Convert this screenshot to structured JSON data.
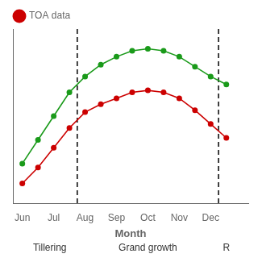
{
  "chart_data": {
    "type": "line",
    "xlabel": "Month",
    "x": [
      0,
      0.5,
      1,
      1.5,
      2,
      2.5,
      3,
      3.5,
      4,
      4.5,
      5,
      5.5,
      6,
      6.5
    ],
    "series": [
      {
        "color": "#1a9a1a",
        "marker": "circle",
        "values": [
          0.2,
          0.32,
          0.44,
          0.56,
          0.64,
          0.7,
          0.74,
          0.77,
          0.78,
          0.77,
          0.74,
          0.69,
          0.64,
          0.6
        ]
      },
      {
        "name": "TOA data",
        "color": "#cc0000",
        "marker": "circle",
        "values": [
          0.1,
          0.18,
          0.28,
          0.38,
          0.46,
          0.5,
          0.53,
          0.56,
          0.57,
          0.56,
          0.53,
          0.47,
          0.4,
          0.33
        ]
      }
    ],
    "xlim": [
      -0.3,
      7.2
    ],
    "ylim": [
      0.0,
      0.88
    ],
    "xticks": [
      {
        "value": 0,
        "label": "Jun"
      },
      {
        "value": 1,
        "label": "Jul"
      },
      {
        "value": 2,
        "label": "Aug"
      },
      {
        "value": 3,
        "label": "Sep"
      },
      {
        "value": 4,
        "label": "Oct"
      },
      {
        "value": 5,
        "label": "Nov"
      },
      {
        "value": 6,
        "label": "Dec"
      }
    ],
    "vlines": [
      {
        "x": 1.75,
        "color": "#000000",
        "line_style": "dashed"
      },
      {
        "x": 6.25,
        "color": "#000000",
        "line_style": "dashed"
      }
    ],
    "annotations": [
      {
        "text": "Tillering",
        "x": 0.875
      },
      {
        "text": "Grand growth",
        "x": 4.0
      },
      {
        "text": "R",
        "x": 6.5
      }
    ],
    "legend": "upper left",
    "grid": false,
    "tick_labels": "x"
  }
}
